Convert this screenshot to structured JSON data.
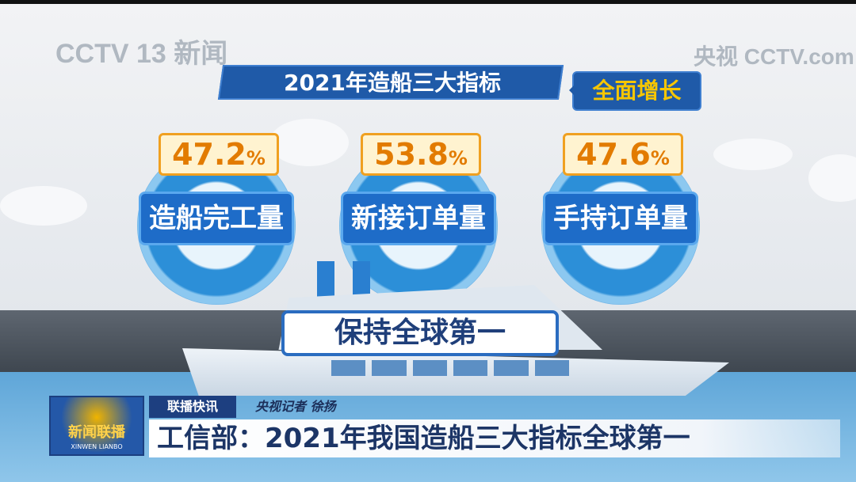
{
  "watermarks": {
    "left": "CCTV 13 新闻",
    "right": "央视 CCTV.com"
  },
  "title": "2021年造船三大指标",
  "badge": "全面增长",
  "indicators": [
    {
      "value": "47.2",
      "unit": "%",
      "label": "造船完工量"
    },
    {
      "value": "53.8",
      "unit": "%",
      "label": "新接订单量"
    },
    {
      "value": "47.6",
      "unit": "%",
      "label": "手持订单量"
    }
  ],
  "slogan": "保持全球第一",
  "lower_third": {
    "logo": "新闻联播",
    "logo_pinyin": "XINWEN LIANBO",
    "tag": "联播快讯",
    "reporter": "央视记者 徐扬",
    "headline": "工信部：2021年我国造船三大指标全球第一"
  },
  "colors": {
    "banner": "#1f5aa8",
    "badge_text": "#f7c600",
    "percent": "#e27b00",
    "headline": "#1c3566"
  }
}
